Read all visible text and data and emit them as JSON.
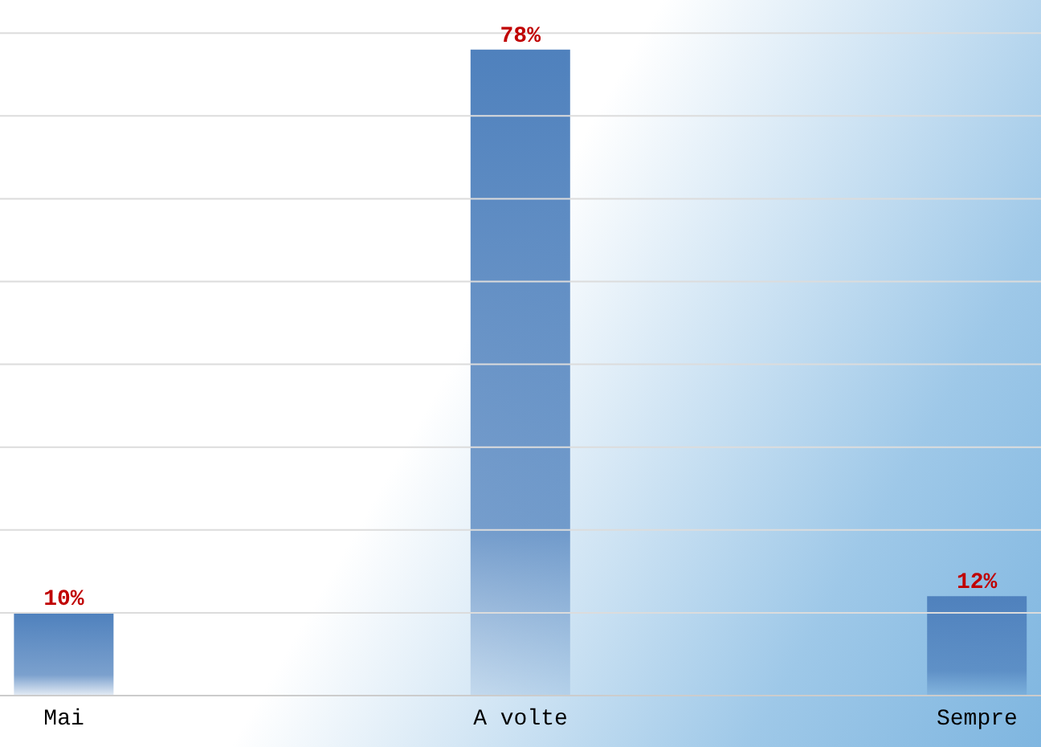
{
  "chart_data": {
    "type": "bar",
    "categories": [
      "Mai",
      "A volte",
      "Sempre"
    ],
    "values": [
      10,
      78,
      12
    ],
    "value_labels": [
      "10%",
      "78%",
      "12%"
    ],
    "color": "#4f81bd",
    "ylim": [
      0,
      84
    ],
    "yticks": [
      {
        "value": 10,
        "label": null
      },
      {
        "value": 20,
        "label": null
      },
      {
        "value": 30,
        "label": null
      },
      {
        "value": 40,
        "label": null
      },
      {
        "value": 50,
        "label": null
      },
      {
        "value": 60,
        "label": null
      },
      {
        "value": 70,
        "label": null
      },
      {
        "value": 80,
        "label": null
      }
    ],
    "grid": "y",
    "tick_labels": "x"
  }
}
